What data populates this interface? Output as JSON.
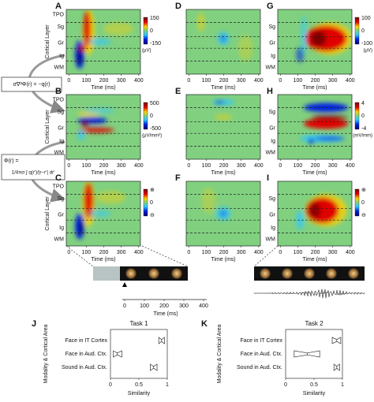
{
  "heatmaps": [
    {
      "letter": "A"
    },
    {
      "letter": "B"
    },
    {
      "letter": "C"
    },
    {
      "letter": "D"
    },
    {
      "letter": "E"
    },
    {
      "letter": "F"
    },
    {
      "letter": "G"
    },
    {
      "letter": "H"
    },
    {
      "letter": "I"
    }
  ],
  "layers": [
    "TPO",
    "Sg",
    "Gr",
    "Ig",
    "WM"
  ],
  "layer_axis_label": "Cortical Layer",
  "time_axis_label": "Time (ms)",
  "time_range": [
    -15,
    410
  ],
  "time_ticks": [
    0,
    100,
    200,
    300,
    400
  ],
  "colorbars": [
    {
      "ticks": [
        "150",
        "0",
        "-150"
      ],
      "unit": "(μV)"
    },
    {
      "ticks": [
        "500",
        "0",
        "-500"
      ],
      "unit": "(μV/mm²)"
    },
    {
      "ticks": [
        "⊕",
        "0",
        "⊖"
      ],
      "unit": ""
    },
    {
      "ticks": [
        "100",
        "0",
        "-100"
      ],
      "unit": "(μV)"
    },
    {
      "ticks": [
        "4",
        "0",
        "-4"
      ],
      "unit": "(mV/mm)"
    },
    {
      "ticks": [
        "⊕",
        "0",
        "⊖"
      ],
      "unit": ""
    }
  ],
  "equations": {
    "poisson": "σ∇²Φ(r) = −q(r)",
    "solution_lhs": "Φ(r) =",
    "solution_rhs": "1/4πσ ∫ q(r′)/|r−r′| dr′"
  },
  "similarity": [
    {
      "letter": "J",
      "title": "Task 1",
      "ylabel": "Modality & Cortical Area",
      "xlabel": "Similarity",
      "categories": [
        "Face in IT Cortex",
        "Face in Aud. Ctx.",
        "Sound in Aud. Ctx."
      ],
      "xlim": [
        0,
        1
      ],
      "xticks": [
        0,
        0.5,
        1
      ],
      "boxes": [
        {
          "q1": 0.85,
          "median": 0.9,
          "q3": 0.95
        },
        {
          "q1": 0.05,
          "median": 0.12,
          "q3": 0.2
        },
        {
          "q1": 0.7,
          "median": 0.76,
          "q3": 0.82
        }
      ]
    },
    {
      "letter": "K",
      "title": "Task 2",
      "ylabel": "Modality & Cortical Area",
      "xlabel": "Similarity",
      "categories": [
        "Face in IT Cortex",
        "Face in Aud. Ctx.",
        "Sound in Aud. Ctx."
      ],
      "xlim": [
        0,
        1
      ],
      "xticks": [
        0,
        0.5,
        1
      ],
      "boxes": [
        {
          "q1": 0.82,
          "median": 0.9,
          "q3": 0.97
        },
        {
          "q1": 0.15,
          "median": 0.38,
          "q3": 0.6
        },
        {
          "q1": 0.85,
          "median": 0.9,
          "q3": 0.95
        }
      ]
    }
  ]
}
